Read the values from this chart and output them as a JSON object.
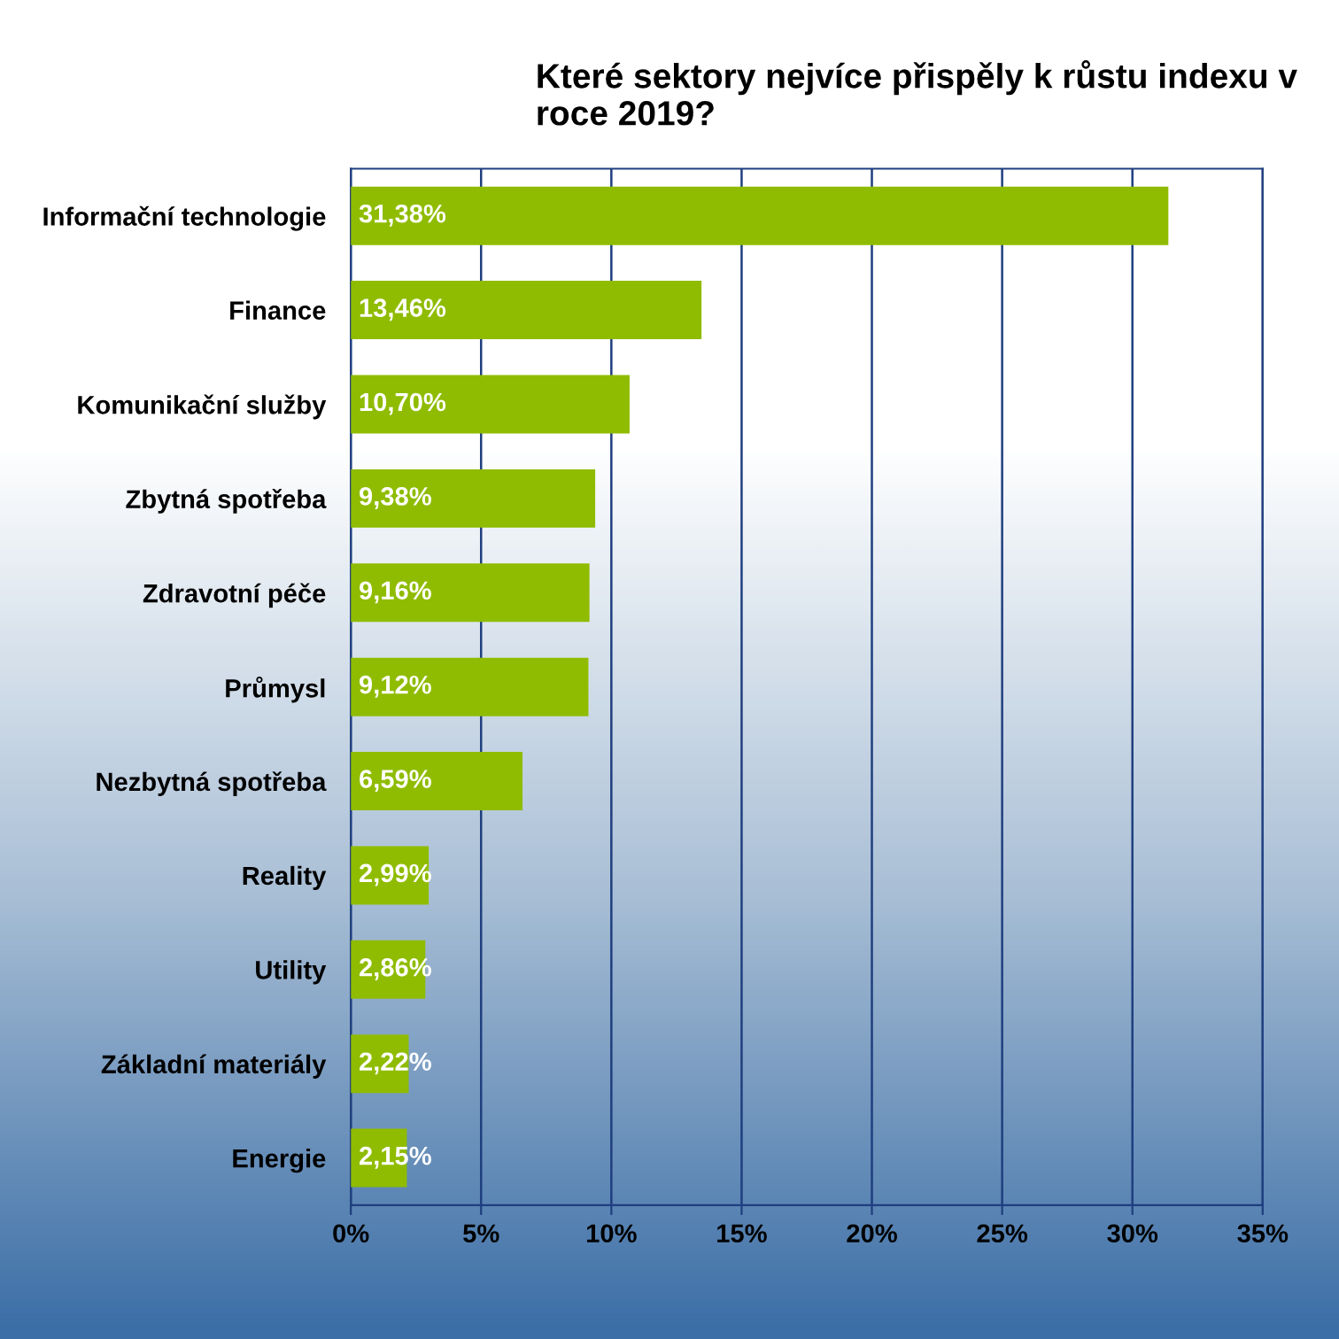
{
  "chart_data": {
    "type": "bar",
    "orientation": "horizontal",
    "title": "Které sektory nejvíce přispěly k růstu indexu v roce 2019?",
    "categories": [
      "Informační technologie",
      "Finance",
      "Komunikační služby",
      "Zbytná spotřeba",
      "Zdravotní péče",
      "Průmysl",
      "Nezbytná spotřeba",
      "Reality",
      "Utility",
      "Základní materiály",
      "Energie"
    ],
    "values": [
      31.38,
      13.46,
      10.7,
      9.38,
      9.16,
      9.12,
      6.59,
      2.99,
      2.86,
      2.22,
      2.15
    ],
    "value_labels": [
      "31,38%",
      "13,46%",
      "10,70%",
      "9,38%",
      "9,16%",
      "9,12%",
      "6,59%",
      "2,99%",
      "2,86%",
      "2,22%",
      "2,15%"
    ],
    "color": "#8fbc00",
    "xlim": [
      0,
      35
    ],
    "xticks": [
      {
        "value": 0,
        "label": "0%"
      },
      {
        "value": 5,
        "label": "5%"
      },
      {
        "value": 10,
        "label": "10%"
      },
      {
        "value": 15,
        "label": "15%"
      },
      {
        "value": 20,
        "label": "20%"
      },
      {
        "value": 25,
        "label": "25%"
      },
      {
        "value": 30,
        "label": "30%"
      },
      {
        "value": 35,
        "label": "35%"
      }
    ],
    "grid": "x",
    "legend": false
  }
}
